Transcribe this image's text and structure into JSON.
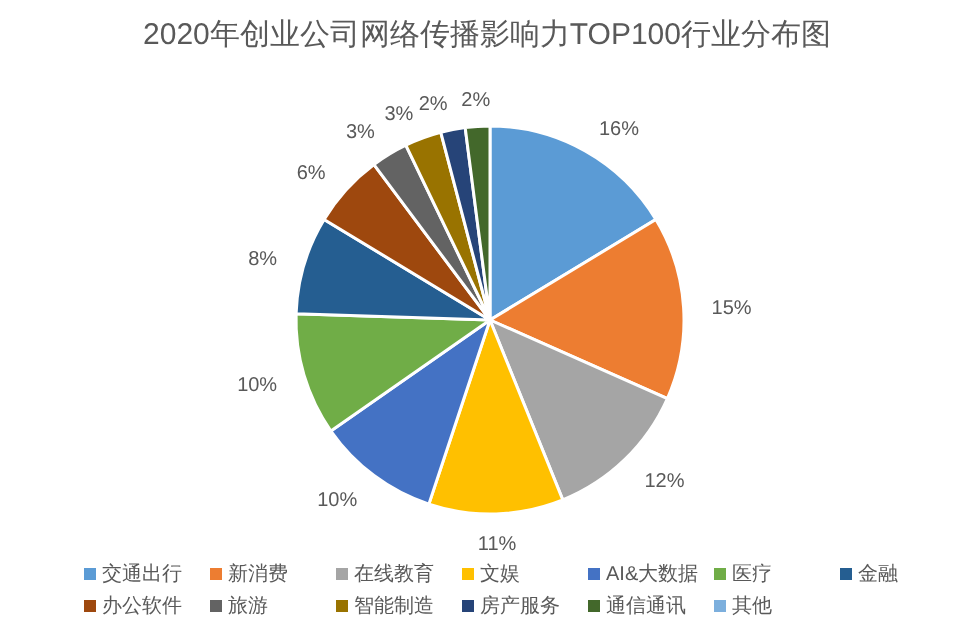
{
  "chart_data": {
    "type": "pie",
    "title": "2020年创业公司网络传播影响力TOP100行业分布图",
    "categories": [
      "交通出行",
      "新消费",
      "在线教育",
      "文娱",
      "AI&大数据",
      "医疗",
      "金融",
      "办公软件",
      "旅游",
      "智能制造",
      "房产服务",
      "通信通讯",
      "其他"
    ],
    "values": [
      16,
      15,
      12,
      11,
      10,
      10,
      8,
      6,
      3,
      3,
      2,
      2,
      0
    ],
    "value_labels": [
      "16%",
      "15%",
      "12%",
      "11%",
      "10%",
      "10%",
      "8%",
      "6%",
      "3%",
      "3%",
      "2%",
      "2%",
      null
    ],
    "colors": [
      "#5b9bd5",
      "#ed7d31",
      "#a5a5a5",
      "#ffc000",
      "#4472c4",
      "#70ad47",
      "#255e91",
      "#9e480e",
      "#636363",
      "#997300",
      "#264478",
      "#43682b",
      "#7cafdd"
    ],
    "legend": "bottom"
  }
}
